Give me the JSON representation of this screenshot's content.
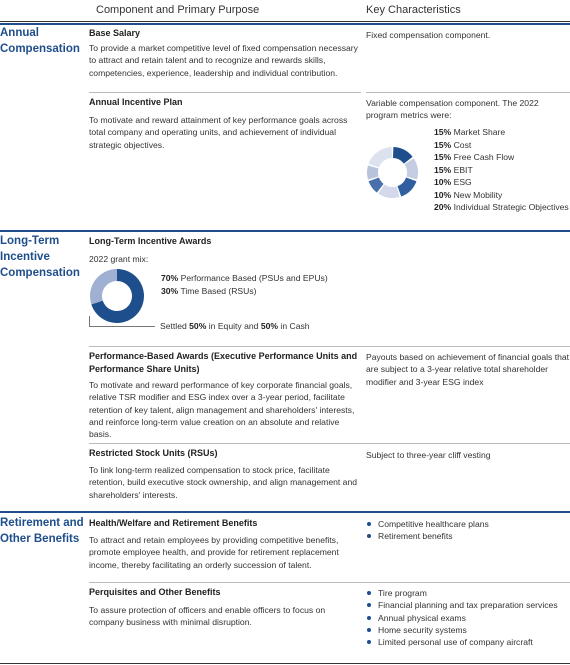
{
  "header": {
    "col1": "Component and Primary Purpose",
    "col2": "Key Characteristics"
  },
  "annual": {
    "section_title": "Annual\nCompensation",
    "base": {
      "title": "Base Salary",
      "desc": "To provide a market competitive level of fixed compensation necessary to attract and retain talent and to recognize and rewards skills, competencies, experience, leadership and individual contribution.",
      "kc": "Fixed compensation component."
    },
    "incentive": {
      "title": "Annual Incentive Plan",
      "desc": "To motivate and reward attainment of key performance goals across total company and operating units, and achievement of individual strategic objectives.",
      "kc": "Variable compensation component.  The 2022 program metrics were:",
      "metrics": [
        {
          "pct": "15%",
          "label": "Market Share"
        },
        {
          "pct": "15%",
          "label": "Cost"
        },
        {
          "pct": "15%",
          "label": "Free Cash Flow"
        },
        {
          "pct": "15%",
          "label": "EBIT"
        },
        {
          "pct": "10%",
          "label": "ESG"
        },
        {
          "pct": "10%",
          "label": "New Mobility"
        },
        {
          "pct": "20%",
          "label": "Individual Strategic Objectives"
        }
      ],
      "donut_colors": [
        "#1f4e8c",
        "#c5cde3",
        "#2f5f9f",
        "#d3d9ea",
        "#4a6fad",
        "#b7c2dc",
        "#dde2ef"
      ]
    }
  },
  "longterm": {
    "section_title": "Long-Term\nIncentive\nCompensation",
    "awards": {
      "title": "Long-Term Incentive Awards",
      "grant_mix": "2022 grant mix:",
      "perf_pct": "70%",
      "perf_label": "Performance Based (PSUs and EPUs)",
      "time_pct": "30%",
      "time_label": "Time Based (RSUs)",
      "settled_prefix": "Settled",
      "settled_pct1": "50%",
      "settled_mid": "in Equity and",
      "settled_pct2": "50%",
      "settled_suffix": "in Cash",
      "donut_values": [
        70,
        30
      ],
      "donut_colors": [
        "#1f4e8c",
        "#9fb0d2"
      ]
    },
    "performance": {
      "title": "Performance-Based Awards (Executive Performance Units and Performance Share Units)",
      "desc": "To motivate and reward performance of key corporate financial goals, relative TSR modifier and ESG index over a 3-year period, facilitate retention of key talent, align management and shareholders' interests, and reinforce long-term value creation on an absolute and relative basis.",
      "kc": "Payouts based on achievement of financial goals that are subject to a 3-year relative total shareholder modifier and 3-year ESG index"
    },
    "rsu": {
      "title": "Restricted Stock Units (RSUs)",
      "desc": "To link long-term realized compensation to stock price, facilitate retention, build executive stock ownership, and align management and shareholders' interests.",
      "kc": "Subject to three-year cliff vesting"
    }
  },
  "retirement": {
    "section_title": "Retirement and\nOther Benefits",
    "health": {
      "title": "Health/Welfare and Retirement Benefits",
      "desc": "To attract and retain employees by providing competitive benefits, promote employee health, and provide for retirement replacement income, thereby facilitating an orderly succession of talent.",
      "bullets": [
        "Competitive healthcare plans",
        "Retirement benefits"
      ]
    },
    "perqs": {
      "title": "Perquisites and Other Benefits",
      "desc": "To assure protection of officers and enable officers to focus on company business with minimal disruption.",
      "bullets": [
        "Tire program",
        "Financial planning and tax preparation services",
        "Annual physical exams",
        "Home security systems",
        "Limited personal use of company aircraft"
      ]
    }
  }
}
